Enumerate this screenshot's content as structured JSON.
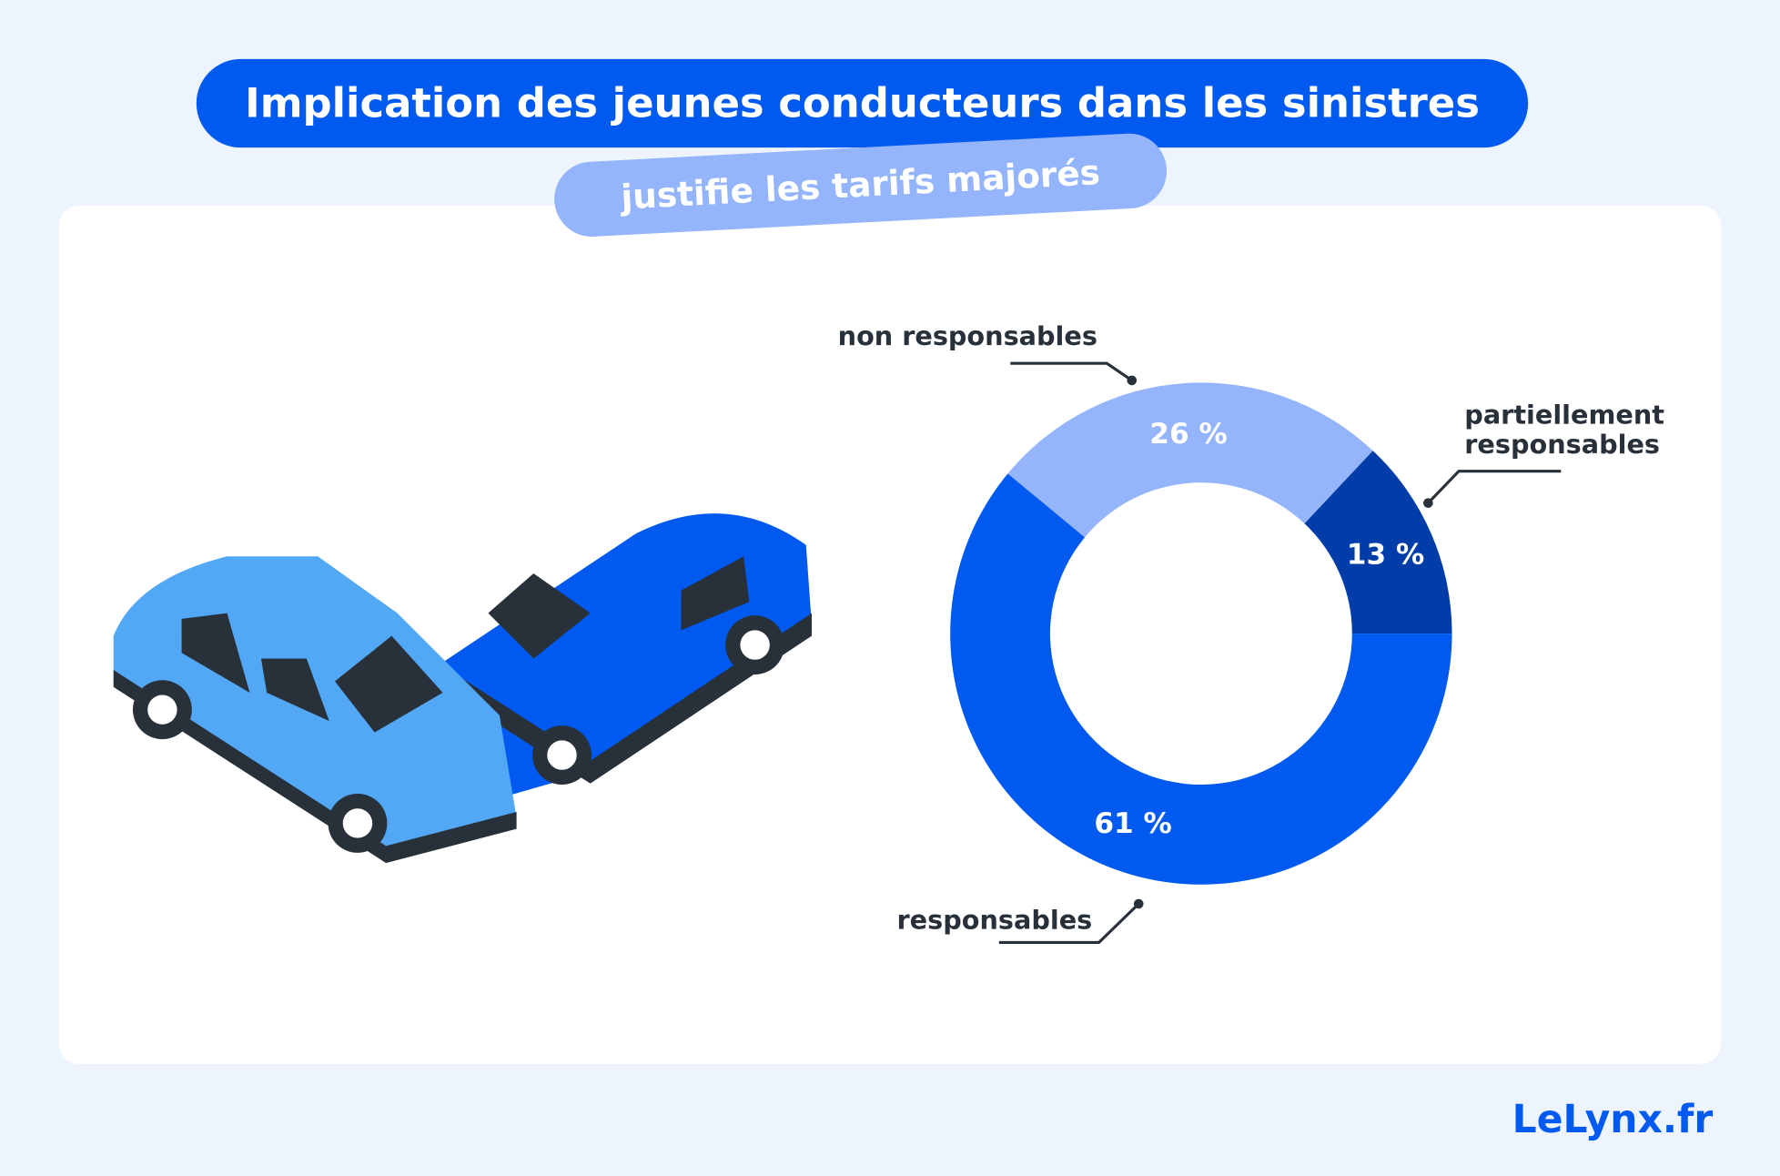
{
  "title": "Implication des jeunes conducteurs dans les sinistres",
  "subtitle": "justifie les tarifs majorés",
  "logo": "LeLynx.fr",
  "chart_data": {
    "type": "pie",
    "donut": true,
    "categories": [
      "partiellement responsables",
      "non responsables",
      "responsables"
    ],
    "values": [
      13,
      26,
      61
    ],
    "value_labels": [
      "13 %",
      "26 %",
      "61 %"
    ],
    "colors": [
      "#003da8",
      "#94b4fb",
      "#005af0"
    ]
  }
}
